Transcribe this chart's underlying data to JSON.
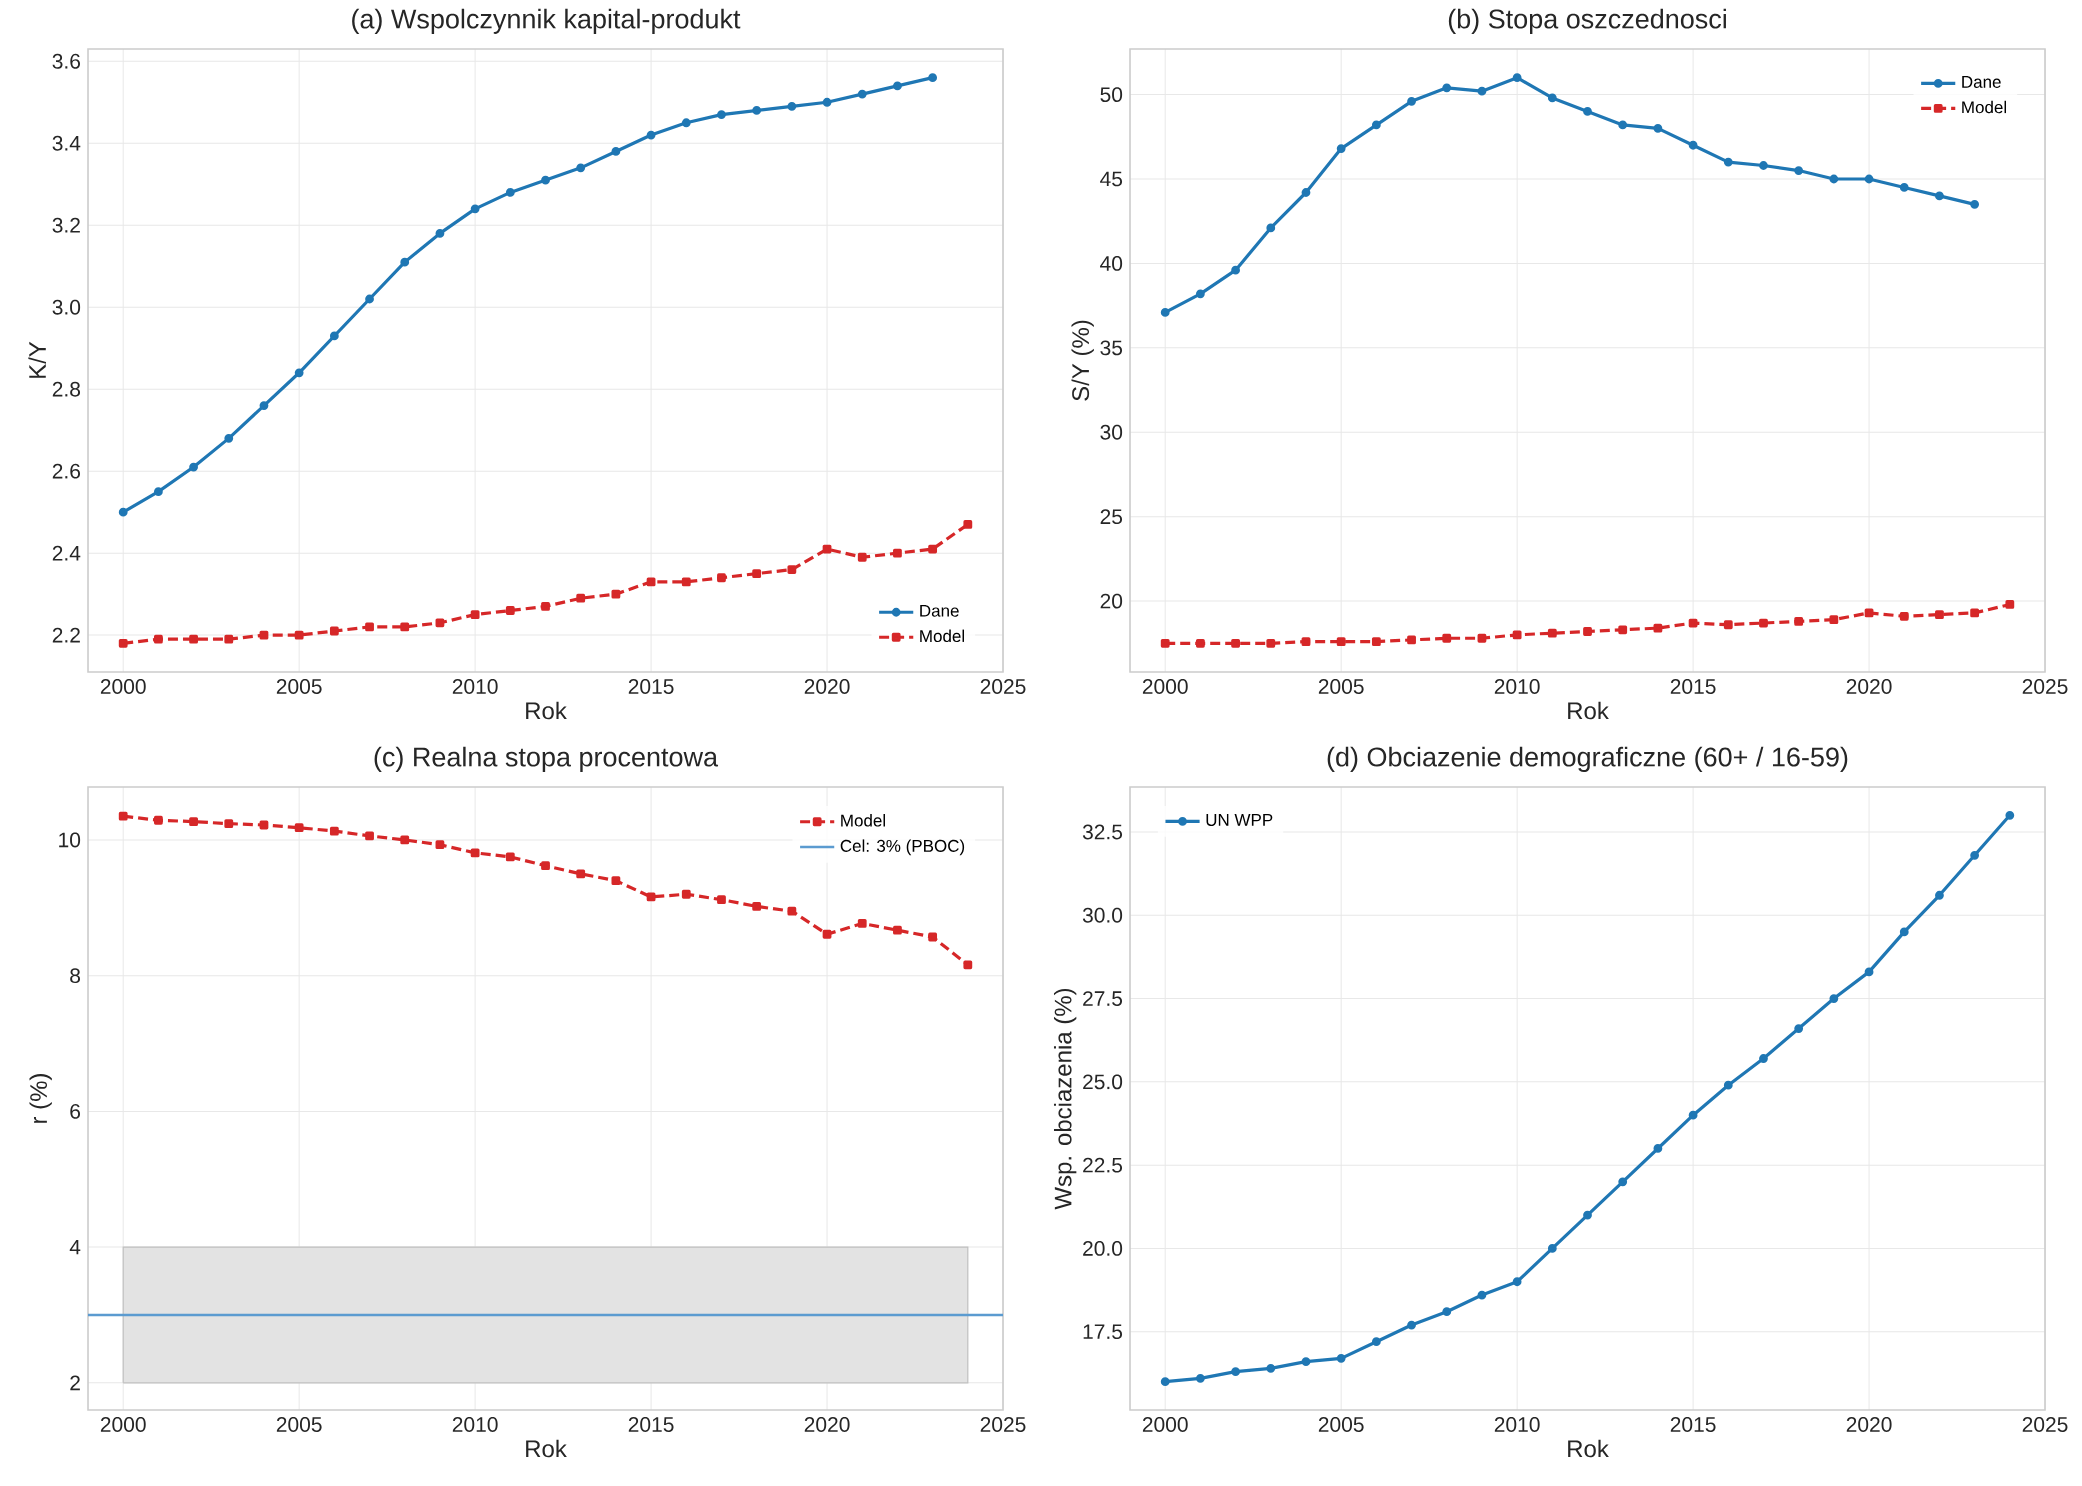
{
  "chart_data": [
    {
      "type": "line",
      "title": "(a) Wspolczynnik kapital-produkt",
      "xlabel": "Rok",
      "ylabel": "K/Y",
      "x": [
        2000,
        2001,
        2002,
        2003,
        2004,
        2005,
        2006,
        2007,
        2008,
        2009,
        2010,
        2011,
        2012,
        2013,
        2014,
        2015,
        2016,
        2017,
        2018,
        2019,
        2020,
        2021,
        2022,
        2023,
        2024
      ],
      "series": [
        {
          "name": "Dane",
          "color": "#1f77b4",
          "marker": "circle",
          "line_style": "solid",
          "values": [
            2.5,
            2.55,
            2.61,
            2.68,
            2.76,
            2.84,
            2.93,
            3.02,
            3.11,
            3.18,
            3.24,
            3.28,
            3.31,
            3.34,
            3.38,
            3.42,
            3.45,
            3.47,
            3.48,
            3.49,
            3.5,
            3.52,
            3.54,
            3.56,
            null
          ]
        },
        {
          "name": "Model",
          "color": "#d62728",
          "marker": "square",
          "line_style": "dashed",
          "values": [
            2.18,
            2.19,
            2.19,
            2.19,
            2.2,
            2.2,
            2.21,
            2.22,
            2.22,
            2.23,
            2.25,
            2.26,
            2.27,
            2.29,
            2.3,
            2.33,
            2.33,
            2.34,
            2.35,
            2.36,
            2.41,
            2.39,
            2.4,
            2.41,
            2.47
          ]
        }
      ],
      "xlim": [
        1999,
        2025
      ],
      "ylim": [
        2.11,
        3.63
      ],
      "xticks": [
        2000,
        2005,
        2010,
        2015,
        2020,
        2025
      ],
      "yticks": [
        2.2,
        2.4,
        2.6,
        2.8,
        {
          "value": 3,
          "label": "3.0"
        },
        3.2,
        3.4,
        3.6
      ],
      "grid": true,
      "legend": "bottom right"
    },
    {
      "type": "line",
      "title": "(b) Stopa oszczednosci",
      "xlabel": "Rok",
      "ylabel": "S/Y (%)",
      "x": [
        2000,
        2001,
        2002,
        2003,
        2004,
        2005,
        2006,
        2007,
        2008,
        2009,
        2010,
        2011,
        2012,
        2013,
        2014,
        2015,
        2016,
        2017,
        2018,
        2019,
        2020,
        2021,
        2022,
        2023,
        2024
      ],
      "series": [
        {
          "name": "Dane",
          "color": "#1f77b4",
          "marker": "circle",
          "line_style": "solid",
          "values": [
            37.1,
            38.2,
            39.6,
            42.1,
            44.2,
            46.8,
            48.2,
            49.6,
            50.4,
            50.2,
            51.0,
            49.8,
            49.0,
            48.2,
            48.0,
            47.0,
            46.0,
            45.8,
            45.5,
            45.0,
            45.0,
            44.5,
            44.0,
            43.5,
            null
          ]
        },
        {
          "name": "Model",
          "color": "#d62728",
          "marker": "square",
          "line_style": "dashed",
          "values": [
            17.5,
            17.5,
            17.5,
            17.5,
            17.6,
            17.6,
            17.6,
            17.7,
            17.8,
            17.8,
            18.0,
            18.1,
            18.2,
            18.3,
            18.4,
            18.7,
            18.6,
            18.7,
            18.8,
            18.9,
            19.3,
            19.1,
            19.2,
            19.3,
            19.8
          ]
        }
      ],
      "xlim": [
        1999,
        2025
      ],
      "ylim": [
        15.8,
        52.7
      ],
      "xticks": [
        2000,
        2005,
        2010,
        2015,
        2020,
        2025
      ],
      "yticks": [
        20,
        25,
        30,
        35,
        40,
        45,
        50
      ],
      "grid": true,
      "legend": "top right"
    },
    {
      "type": "line",
      "title": "(c) Realna stopa procentowa",
      "xlabel": "Rok",
      "ylabel": "r (%)",
      "x": [
        2000,
        2001,
        2002,
        2003,
        2004,
        2005,
        2006,
        2007,
        2008,
        2009,
        2010,
        2011,
        2012,
        2013,
        2014,
        2015,
        2016,
        2017,
        2018,
        2019,
        2020,
        2021,
        2022,
        2023,
        2024
      ],
      "series": [
        {
          "name": "Model",
          "color": "#d62728",
          "marker": "square",
          "line_style": "dashed",
          "values": [
            10.35,
            10.29,
            10.27,
            10.24,
            10.22,
            10.18,
            10.13,
            10.06,
            10.0,
            9.93,
            9.81,
            9.75,
            9.62,
            9.5,
            9.4,
            9.16,
            9.2,
            9.12,
            9.02,
            8.95,
            8.61,
            8.77,
            8.67,
            8.57,
            8.16
          ]
        }
      ],
      "ref_lines": [
        {
          "axis": "y",
          "value": 3,
          "label": "Cel: 3% (PBOC)",
          "color": "#5b9bd0",
          "line_style": "solid"
        }
      ],
      "bands": [
        {
          "axis": "y",
          "from": 2,
          "to": 4,
          "color": "#e3e3e3"
        }
      ],
      "xlim": [
        1999,
        2025
      ],
      "ylim": [
        1.6,
        10.78
      ],
      "xticks": [
        2000,
        2005,
        2010,
        2015,
        2020,
        2025
      ],
      "yticks": [
        2,
        4,
        6,
        8,
        10
      ],
      "grid": true,
      "legend": "top right"
    },
    {
      "type": "line",
      "title": "(d) Obciazenie demograficzne (60+ / 16-59)",
      "xlabel": "Rok",
      "ylabel": "Wsp. obciazenia (%)",
      "x": [
        2000,
        2001,
        2002,
        2003,
        2004,
        2005,
        2006,
        2007,
        2008,
        2009,
        2010,
        2011,
        2012,
        2013,
        2014,
        2015,
        2016,
        2017,
        2018,
        2019,
        2020,
        2021,
        2022,
        2023,
        2024
      ],
      "series": [
        {
          "name": "UN WPP",
          "color": "#1f77b4",
          "marker": "circle",
          "line_style": "solid",
          "values": [
            16.0,
            16.1,
            16.3,
            16.4,
            16.6,
            16.7,
            17.2,
            17.7,
            18.1,
            18.6,
            19.0,
            20.0,
            21.0,
            22.0,
            23.0,
            24.0,
            24.9,
            25.7,
            26.6,
            27.5,
            28.3,
            29.5,
            30.6,
            31.8,
            33.0
          ]
        }
      ],
      "xlim": [
        1999,
        2025
      ],
      "ylim": [
        15.15,
        33.85
      ],
      "xticks": [
        2000,
        2005,
        2010,
        2015,
        2020,
        2025
      ],
      "yticks": [
        {
          "value": 17.5,
          "label": "17.5"
        },
        {
          "value": 20,
          "label": "20.0"
        },
        {
          "value": 22.5,
          "label": "22.5"
        },
        {
          "value": 25,
          "label": "25.0"
        },
        {
          "value": 27.5,
          "label": "27.5"
        },
        {
          "value": 30,
          "label": "30.0"
        },
        {
          "value": 32.5,
          "label": "32.5"
        }
      ],
      "grid": true,
      "legend": "top left"
    }
  ]
}
